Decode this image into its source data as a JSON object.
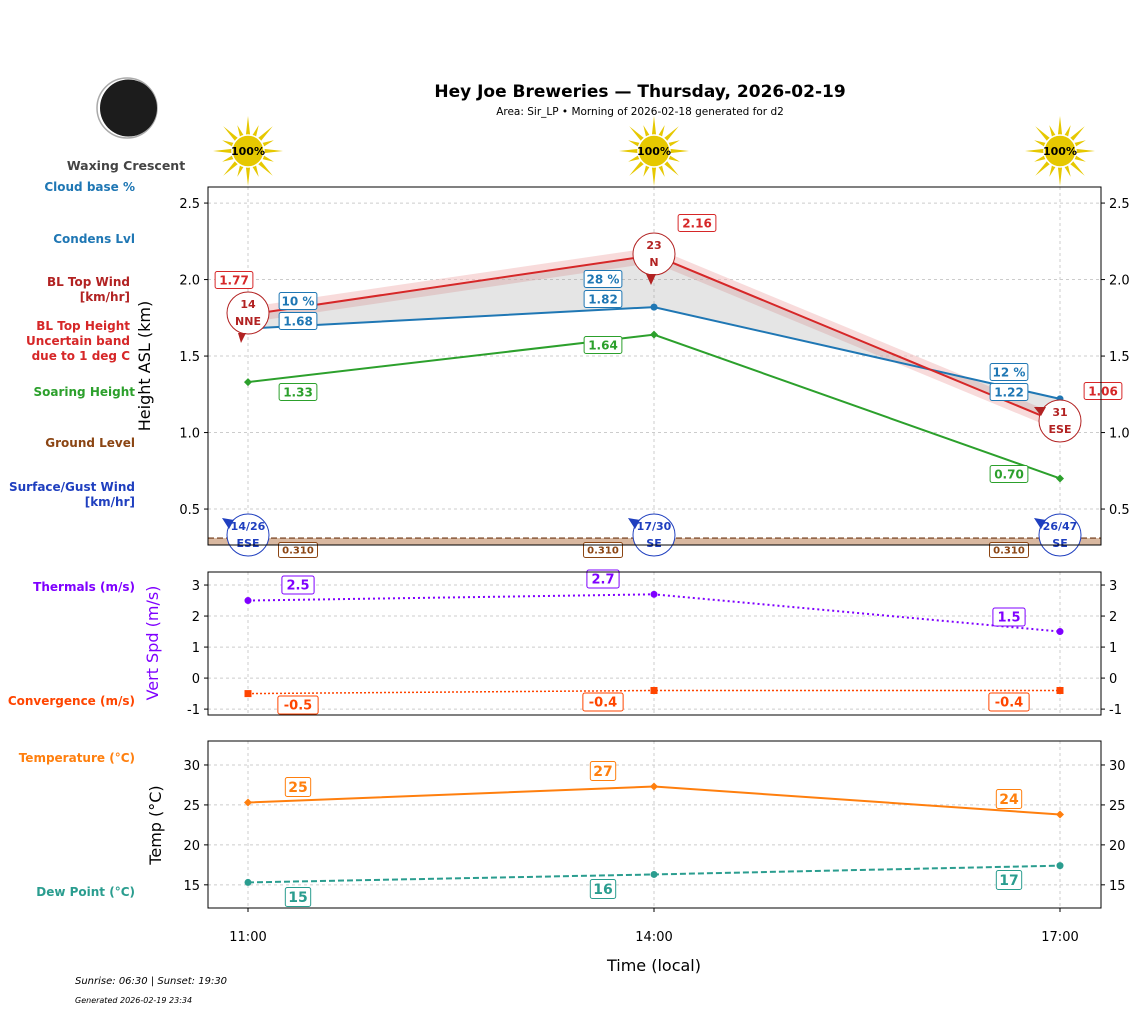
{
  "title": "Hey Joe Breweries — Thursday, 2026-02-19",
  "subtitle": "Area: Sir_LP • Morning of 2026-02-18 generated for d2",
  "moon_phase": "Waxing Crescent",
  "sun_line": "Sunrise: 06:30 | Sunset: 19:30",
  "generated": "Generated 2026-02-19 23:34",
  "side_labels": [
    {
      "text": "Cloud base %",
      "color": "#1f77b4"
    },
    {
      "text": "Condens Lvl",
      "color": "#1f77b4"
    },
    {
      "text": "BL Top Wind\n[km/hr]",
      "color": "#b22222"
    },
    {
      "text": "BL Top Height\nUncertain band\ndue to 1 deg C",
      "color": "#d62728"
    },
    {
      "text": "Soaring Height",
      "color": "#2ca02c"
    },
    {
      "text": "Ground Level",
      "color": "#8b4513"
    },
    {
      "text": "Surface/Gust Wind\n[km/hr]",
      "color": "#1f3fbf"
    },
    {
      "text": "Thermals (m/s)",
      "color": "#7f00ff"
    },
    {
      "text": "Convergence (m/s)",
      "color": "#ff4500"
    },
    {
      "text": "Temperature (°C)",
      "color": "#ff7f0e"
    },
    {
      "text": "Dew Point (°C)",
      "color": "#2a9d8f"
    }
  ],
  "sun_percent": [
    "100%",
    "100%",
    "100%"
  ],
  "chart_data": [
    {
      "type": "line",
      "ylabel": "Height ASL (km)",
      "x": [
        "11:00",
        "14:00",
        "17:00"
      ],
      "ylim": [
        0.265,
        2.605
      ],
      "yticks": [
        "0.5",
        "1.0",
        "1.5",
        "2.0",
        "2.5"
      ],
      "grid": true,
      "bl_top": {
        "values": [
          1.77,
          2.16,
          1.06
        ],
        "labels": [
          "1.77",
          "2.16",
          "1.06"
        ],
        "band": 0.05,
        "color": "#d62728"
      },
      "condens": {
        "values": [
          1.68,
          1.82,
          1.22
        ],
        "labels": [
          "1.68",
          "1.82",
          "1.22"
        ],
        "color": "#1f77b4"
      },
      "cloud_pct": [
        "10 %",
        "28 %",
        "12 %"
      ],
      "soaring": {
        "values": [
          1.33,
          1.64,
          0.7
        ],
        "labels": [
          "1.33",
          "1.64",
          "0.70"
        ],
        "color": "#2ca02c"
      },
      "ground": {
        "value": 0.31,
        "labels": [
          "0.310",
          "0.310",
          "0.310"
        ],
        "color": "#8b5a3c"
      },
      "bl_wind": [
        {
          "speed": "14",
          "dir": "NNE"
        },
        {
          "speed": "23",
          "dir": "N"
        },
        {
          "speed": "31",
          "dir": "ESE"
        }
      ],
      "surface_wind": [
        {
          "speed": "14/26",
          "dir": "ESE"
        },
        {
          "speed": "17/30",
          "dir": "SE"
        },
        {
          "speed": "26/47",
          "dir": "SE"
        }
      ]
    },
    {
      "type": "line",
      "ylabel": "Vert Spd (m/s)",
      "x": [
        "11:00",
        "14:00",
        "17:00"
      ],
      "ylim": [
        -1.19,
        3.42
      ],
      "yticks": [
        "-1",
        "0",
        "1",
        "2",
        "3"
      ],
      "grid": true,
      "thermals": {
        "values": [
          2.5,
          2.7,
          1.5
        ],
        "labels": [
          "2.5",
          "2.7",
          "1.5"
        ],
        "color": "#7f00ff"
      },
      "convergence": {
        "values": [
          -0.5,
          -0.4,
          -0.4
        ],
        "labels": [
          "-0.5",
          "-0.4",
          "-0.4"
        ],
        "color": "#ff4500"
      }
    },
    {
      "type": "line",
      "ylabel": "Temp (°C)",
      "xlabel": "Time (local)",
      "x": [
        "11:00",
        "14:00",
        "17:00"
      ],
      "ylim": [
        12.1,
        33
      ],
      "yticks": [
        "15",
        "20",
        "25",
        "30"
      ],
      "grid": true,
      "temperature": {
        "values": [
          25.3,
          27.3,
          23.8
        ],
        "labels": [
          "25",
          "27",
          "24"
        ],
        "color": "#ff7f0e"
      },
      "dew_point": {
        "values": [
          15.3,
          16.3,
          17.4
        ],
        "labels": [
          "15",
          "16",
          "17"
        ],
        "color": "#2a9d8f"
      }
    }
  ]
}
